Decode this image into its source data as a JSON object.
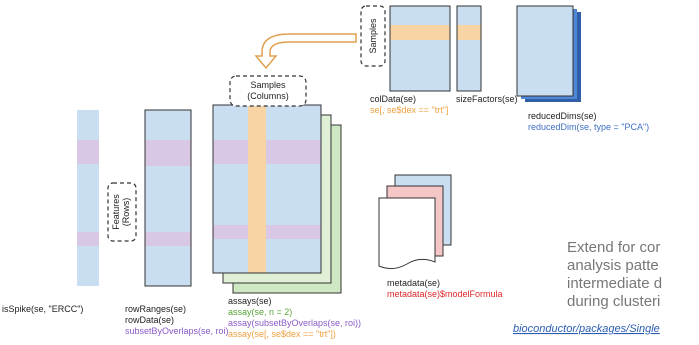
{
  "samples_columns_box": {
    "line1": "Samples",
    "line2": "(Columns)"
  },
  "samples_box": "Samples",
  "features_box": {
    "line1": "Features",
    "line2": "(Rows)"
  },
  "coldata": {
    "label": "colData(se)",
    "example": "se[, se$dex == \"trt\"]"
  },
  "sizefactors": {
    "label": "sizeFactors(se)"
  },
  "reduceddims": {
    "label": "reducedDims(se)",
    "example": "reducedDim(se, type = \"PCA\")"
  },
  "isspike": {
    "label": "isSpike(se, \"ERCC\")"
  },
  "rowranges": {
    "label1": "rowRanges(se)",
    "label2": "rowData(se)",
    "example": "subsetByOverlaps(se, roi)"
  },
  "assays": {
    "label": "assays(se)",
    "examples": [
      "assay(se, n = 2)",
      "assay(subsetByOverlaps(se, roi))",
      "assay(se[, se$dex == \"trt\"])"
    ]
  },
  "metadata": {
    "label": "metadata(se)",
    "example": "metadata(se)$modelFormula"
  },
  "side_text": [
    "Extend for cor",
    "analysis patte",
    "intermediate d",
    "during clusteri"
  ],
  "link": "bioconductor/packages/Single"
}
